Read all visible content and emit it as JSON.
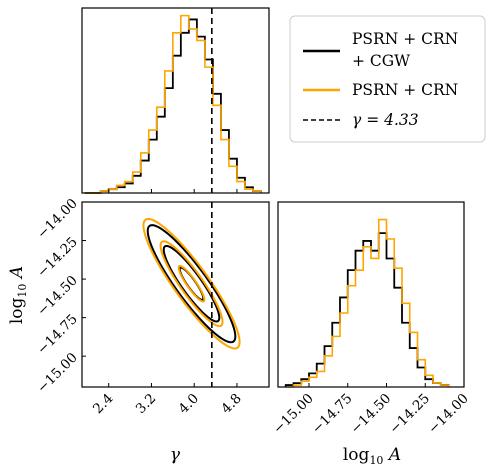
{
  "chart_data": {
    "type": "corner",
    "title": "",
    "params": [
      "γ",
      "log10 A"
    ],
    "colors": {
      "with_cgw": "#000000",
      "without_cgw": "#FFA500",
      "reference": "#000000"
    },
    "reference": {
      "gamma": 4.33,
      "label": "γ = 4.33"
    },
    "legend": {
      "placement": "top-right",
      "entries": [
        {
          "label_line1": "PSRN + CRN",
          "label_line2": "+ CGW",
          "style": "solid",
          "color": "#000000"
        },
        {
          "label_line1": "PSRN + CRN",
          "label_line2": "",
          "style": "solid",
          "color": "#FFA500"
        },
        {
          "label_line1": "γ = 4.33",
          "label_line2": "",
          "style": "dashed",
          "color": "#000000"
        }
      ]
    },
    "gamma_axis": {
      "label": "γ",
      "lim": [
        1.9,
        5.4
      ],
      "ticks": [
        2.4,
        3.2,
        4.0,
        4.8
      ],
      "tick_labels": [
        "2.4",
        "3.2",
        "4.0",
        "4.8"
      ]
    },
    "log10A_axis": {
      "label": "log10 A",
      "lim": [
        -15.2,
        -14.0
      ],
      "ticks": [
        -15.0,
        -14.75,
        -14.5,
        -14.25,
        -14.0
      ],
      "tick_labels": [
        "−15.00",
        "−14.75",
        "−14.50",
        "−14.25",
        "−14.00"
      ]
    },
    "hist_gamma": {
      "bin_edges": [
        1.95,
        2.1,
        2.25,
        2.4,
        2.55,
        2.7,
        2.85,
        3.0,
        3.15,
        3.3,
        3.45,
        3.6,
        3.75,
        3.9,
        4.05,
        4.2,
        4.35,
        4.5,
        4.65,
        4.8,
        4.95,
        5.1,
        5.25
      ],
      "series": [
        {
          "name": "PSRN + CRN + CGW",
          "counts": [
            0,
            0,
            0.01,
            0.02,
            0.03,
            0.05,
            0.09,
            0.17,
            0.28,
            0.4,
            0.55,
            0.72,
            0.84,
            0.91,
            0.82,
            0.7,
            0.52,
            0.33,
            0.18,
            0.08,
            0.03,
            0.01
          ]
        },
        {
          "name": "PSRN + CRN",
          "counts": [
            0,
            0,
            0.01,
            0.02,
            0.04,
            0.06,
            0.11,
            0.21,
            0.33,
            0.45,
            0.64,
            0.84,
            0.93,
            0.86,
            0.8,
            0.66,
            0.46,
            0.28,
            0.14,
            0.06,
            0.02,
            0.01
          ]
        }
      ]
    },
    "hist_log10A": {
      "bin_edges": [
        -15.15,
        -15.1,
        -15.05,
        -15.0,
        -14.95,
        -14.9,
        -14.85,
        -14.8,
        -14.75,
        -14.7,
        -14.65,
        -14.6,
        -14.55,
        -14.5,
        -14.45,
        -14.4,
        -14.35,
        -14.3,
        -14.25,
        -14.2,
        -14.15,
        -14.1
      ],
      "series": [
        {
          "name": "PSRN + CRN + CGW",
          "counts": [
            0.01,
            0.02,
            0.04,
            0.07,
            0.12,
            0.21,
            0.33,
            0.46,
            0.6,
            0.7,
            0.75,
            0.7,
            0.79,
            0.66,
            0.51,
            0.33,
            0.2,
            0.1,
            0.04,
            0.02,
            0.01
          ]
        },
        {
          "name": "PSRN + CRN",
          "counts": [
            0,
            0.01,
            0.03,
            0.05,
            0.08,
            0.16,
            0.26,
            0.38,
            0.52,
            0.6,
            0.72,
            0.66,
            0.86,
            0.76,
            0.61,
            0.43,
            0.28,
            0.14,
            0.06,
            0.02,
            0.01
          ]
        }
      ]
    },
    "contours": {
      "center": {
        "gamma": 3.95,
        "log10A": -14.53
      },
      "series": [
        {
          "name": "PSRN + CRN + CGW",
          "levels": [
            {
              "sigma_gamma": 0.22,
              "sigma_log10A": 0.105,
              "rho": -0.9
            },
            {
              "sigma_gamma": 0.52,
              "sigma_log10A": 0.245,
              "rho": -0.9
            },
            {
              "sigma_gamma": 0.82,
              "sigma_log10A": 0.38,
              "rho": -0.9
            }
          ]
        },
        {
          "name": "PSRN + CRN",
          "levels": [
            {
              "sigma_gamma": 0.24,
              "sigma_log10A": 0.115,
              "rho": -0.9
            },
            {
              "sigma_gamma": 0.58,
              "sigma_log10A": 0.275,
              "rho": -0.9
            },
            {
              "sigma_gamma": 0.9,
              "sigma_log10A": 0.42,
              "rho": -0.9
            }
          ]
        }
      ]
    }
  }
}
